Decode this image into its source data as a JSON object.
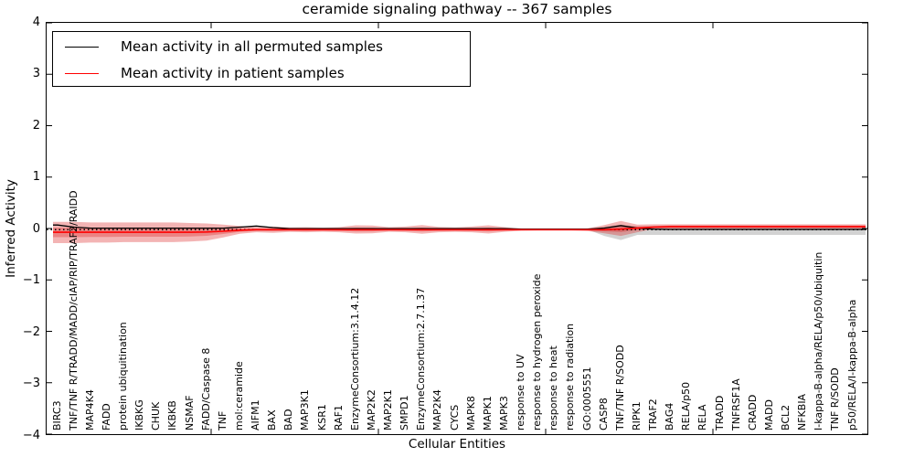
{
  "chart_data": {
    "type": "line",
    "title": "ceramide signaling pathway -- 367 samples",
    "xlabel": "Cellular Entities",
    "ylabel": "Inferred Activity",
    "ylim": [
      -4,
      4
    ],
    "ytick_labels": [
      "4",
      "3",
      "2",
      "1",
      "0",
      "−1",
      "−2",
      "−3",
      "−4"
    ],
    "grid": false,
    "legend_position": "upper left",
    "colors": {
      "permuted_line": "#000000",
      "patient_line": "#ff0000",
      "patient_band": "rgba(220,40,40,0.35)",
      "permuted_band": "rgba(125,125,125,0.35)",
      "zero_line": "#000000"
    },
    "categories": [
      "BIRC3",
      "TNF/TNF R/TRADD/MADD/cIAP/RIP/TRAF2/RAIDD",
      "MAP4K4",
      "FADD",
      "protein ubiquitination",
      "IKBKG",
      "CHUK",
      "IKBKB",
      "NSMAF",
      "FADD/Caspase 8",
      "TNF",
      "mol:ceramide",
      "AIFM1",
      "BAX",
      "BAD",
      "MAP3K1",
      "KSR1",
      "RAF1",
      "EnzymeConsortium:3.1.4.12",
      "MAP2K2",
      "MAP2K1",
      "SMPD1",
      "EnzymeConsortium:2.7.1.37",
      "MAP2K4",
      "CYCS",
      "MAPK8",
      "MAPK1",
      "MAPK3",
      "response to UV",
      "response to hydrogen peroxide",
      "response to heat",
      "response to radiation",
      "GO:0005551",
      "CASP8",
      "TNF/TNF R/SODD",
      "RIPK1",
      "TRAF2",
      "BAG4",
      "RELA/p50",
      "RELA",
      "TRADD",
      "TNFRSF1A",
      "CRADD",
      "MADD",
      "BCL2",
      "NFKBIA",
      "I-kappa-B-alpha/RELA/p50/ubiquitin",
      "TNF R/SODD",
      "p50/RELA/I-kappa-B-alpha"
    ],
    "zero_reference": 0,
    "series": [
      {
        "name": "Mean activity in all permuted samples",
        "color": "#000000",
        "style": "solid",
        "values": [
          0.09,
          0.05,
          0.03,
          0.03,
          0.03,
          0.03,
          0.03,
          0.03,
          0.03,
          0.03,
          0.03,
          0.05,
          0.07,
          0.04,
          0.02,
          0.02,
          0.02,
          0.02,
          0.02,
          0.02,
          0.02,
          0.02,
          0.02,
          0.02,
          0.02,
          0.02,
          0.02,
          0.02,
          0.01,
          0.01,
          0.01,
          0.01,
          0.01,
          0.03,
          0.08,
          0.03,
          0.01,
          0.005,
          0.005,
          0.005,
          0.005,
          0.005,
          0.005,
          0.005,
          0.005,
          0.005,
          0.005,
          0.005,
          0.005
        ]
      },
      {
        "name": "Mean activity in patient samples",
        "color": "#ff0000",
        "style": "solid",
        "values": [
          -0.05,
          -0.05,
          -0.05,
          -0.05,
          -0.05,
          -0.05,
          -0.05,
          -0.05,
          -0.05,
          -0.045,
          -0.03,
          -0.01,
          0,
          0,
          0,
          0,
          0,
          0,
          0,
          0,
          0,
          0,
          0,
          0,
          0,
          0,
          0,
          0,
          0,
          0,
          0,
          0,
          0,
          0,
          0.01,
          0.03,
          0.05,
          0.06,
          0.06,
          0.06,
          0.06,
          0.06,
          0.06,
          0.06,
          0.06,
          0.06,
          0.06,
          0.06,
          0.06
        ]
      }
    ],
    "bands": [
      {
        "name": "patient samples spread",
        "upper": [
          0.15,
          0.15,
          0.14,
          0.14,
          0.14,
          0.14,
          0.14,
          0.14,
          0.13,
          0.12,
          0.1,
          0.07,
          0.05,
          0.06,
          0.045,
          0.05,
          0.04,
          0.05,
          0.085,
          0.08,
          0.05,
          0.06,
          0.09,
          0.055,
          0.045,
          0.06,
          0.085,
          0.05,
          0.02,
          0.012,
          0.012,
          0.012,
          0.025,
          0.09,
          0.17,
          0.1,
          0.105,
          0.105,
          0.105,
          0.105,
          0.105,
          0.105,
          0.105,
          0.105,
          0.105,
          0.105,
          0.105,
          0.105,
          0.105
        ],
        "lower": [
          -0.26,
          -0.26,
          -0.25,
          -0.25,
          -0.24,
          -0.24,
          -0.24,
          -0.24,
          -0.23,
          -0.21,
          -0.15,
          -0.08,
          -0.05,
          -0.06,
          -0.045,
          -0.05,
          -0.04,
          -0.05,
          -0.075,
          -0.07,
          -0.04,
          -0.05,
          -0.08,
          -0.05,
          -0.045,
          -0.05,
          -0.075,
          -0.04,
          -0.02,
          -0.012,
          -0.012,
          -0.012,
          -0.025,
          -0.07,
          -0.12,
          -0.05,
          0.015,
          0.015,
          0.015,
          0.015,
          0.015,
          0.015,
          0.015,
          0.015,
          0.015,
          0.015,
          0.015,
          0.015,
          0.015
        ]
      },
      {
        "name": "permuted samples spread",
        "upper": [
          0,
          0,
          0,
          0,
          0,
          0,
          0,
          0,
          0,
          0,
          0,
          0,
          0,
          0,
          0,
          0,
          0,
          0,
          0,
          0,
          0,
          0,
          0,
          0,
          0,
          0,
          0,
          0,
          0,
          0,
          0,
          0,
          0,
          0.06,
          0.1,
          0.06,
          0.065,
          0.065,
          0.065,
          0.065,
          0.065,
          0.065,
          0.065,
          0.065,
          0.065,
          0.065,
          0.065,
          0.065,
          0.065
        ],
        "lower": [
          0,
          0,
          0,
          0,
          0,
          0,
          0,
          0,
          0,
          0,
          0,
          0,
          0,
          0,
          0,
          0,
          0,
          0,
          0,
          0,
          0,
          0,
          0,
          0,
          0,
          0,
          0,
          0,
          0,
          0,
          0,
          0,
          0,
          -0.12,
          -0.2,
          -0.1,
          -0.1,
          -0.1,
          -0.1,
          -0.1,
          -0.1,
          -0.1,
          -0.1,
          -0.1,
          -0.1,
          -0.1,
          -0.1,
          -0.1,
          -0.1
        ]
      }
    ]
  }
}
